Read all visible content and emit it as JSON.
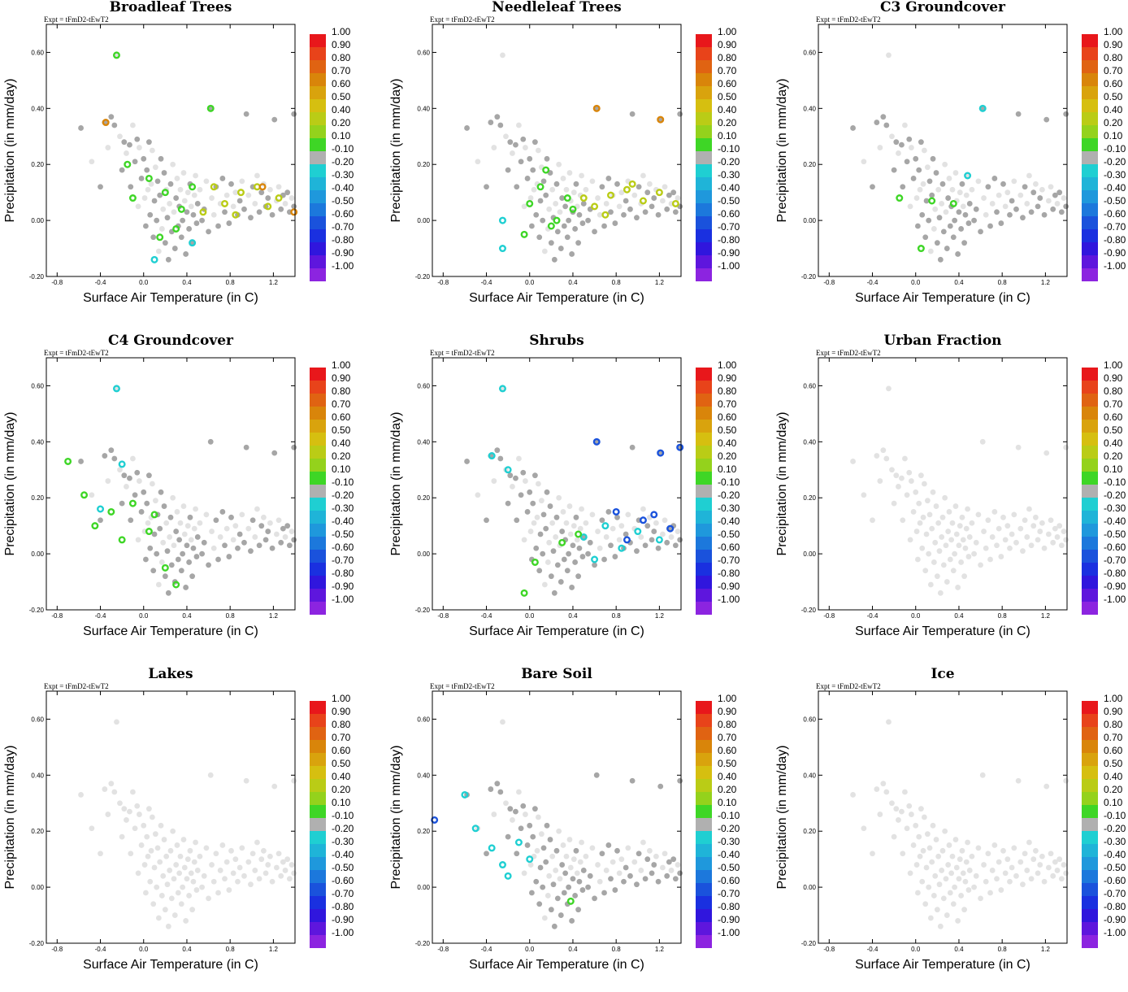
{
  "chart_data": {
    "type": "scatter",
    "layout": "3x3 small multiples",
    "expt_label": "Expt = tFmD2-tEwT2",
    "xlabel": "Surface Air Temperature (in C)",
    "ylabel": "Precipitation (in mm/day)",
    "xlim": [
      -0.9,
      1.4
    ],
    "ylim": [
      -0.2,
      0.7
    ],
    "xticks": [
      -0.8,
      -0.4,
      0.0,
      0.4,
      0.8,
      1.2
    ],
    "xtick_labels": [
      "-0.8",
      "-0.4",
      "0.0",
      "0.4",
      "0.8",
      "1.2"
    ],
    "yticks": [
      -0.2,
      0.0,
      0.2,
      0.4,
      0.6
    ],
    "ytick_labels": [
      "-0.20",
      "0.00",
      "0.20",
      "0.40",
      "0.60"
    ],
    "colorbar": {
      "labels": [
        "1.00",
        "0.90",
        "0.80",
        "0.70",
        "0.60",
        "0.50",
        "0.40",
        "0.20",
        "0.10",
        "-0.10",
        "-0.20",
        "-0.30",
        "-0.40",
        "-0.50",
        "-0.60",
        "-0.70",
        "-0.80",
        "-0.90",
        "-1.00"
      ],
      "colors": [
        "#e8171b",
        "#e8431a",
        "#e06312",
        "#d9850a",
        "#d9a30d",
        "#d6bf10",
        "#bacc16",
        "#94d21c",
        "#3ed626",
        "#b0b0b0",
        "#1fcfd2",
        "#1fb4d8",
        "#1f98dc",
        "#1c78dc",
        "#1a52dc",
        "#1a30e0",
        "#3016dd",
        "#5e16dd",
        "#8c24e0"
      ]
    },
    "point_cloud": {
      "points": [
        [
          -0.58,
          0.33
        ],
        [
          -0.48,
          0.21
        ],
        [
          -0.4,
          0.12
        ],
        [
          -0.36,
          0.35
        ],
        [
          -0.33,
          0.26
        ],
        [
          -0.3,
          0.37
        ],
        [
          -0.27,
          0.34
        ],
        [
          -0.25,
          0.59
        ],
        [
          -0.22,
          0.3
        ],
        [
          -0.2,
          0.18
        ],
        [
          -0.18,
          0.28
        ],
        [
          -0.16,
          0.24
        ],
        [
          -0.13,
          0.27
        ],
        [
          -0.12,
          0.12
        ],
        [
          -0.1,
          0.34
        ],
        [
          -0.08,
          0.21
        ],
        [
          -0.06,
          0.29
        ],
        [
          -0.05,
          0.05
        ],
        [
          -0.04,
          0.26
        ],
        [
          -0.02,
          0.15
        ],
        [
          0.0,
          0.22
        ],
        [
          0.01,
          0.08
        ],
        [
          0.02,
          -0.02
        ],
        [
          0.03,
          0.18
        ],
        [
          0.04,
          0.11
        ],
        [
          0.05,
          0.28
        ],
        [
          0.06,
          0.02
        ],
        [
          0.07,
          0.13
        ],
        [
          0.08,
          0.25
        ],
        [
          0.09,
          -0.06
        ],
        [
          0.1,
          0.07
        ],
        [
          0.11,
          0.19
        ],
        [
          0.12,
          0.0
        ],
        [
          0.13,
          0.14
        ],
        [
          0.14,
          -0.11
        ],
        [
          0.15,
          0.09
        ],
        [
          0.16,
          0.22
        ],
        [
          0.17,
          -0.03
        ],
        [
          0.18,
          0.04
        ],
        [
          0.19,
          0.17
        ],
        [
          0.2,
          -0.08
        ],
        [
          0.21,
          0.11
        ],
        [
          0.22,
          0.01
        ],
        [
          0.23,
          -0.14
        ],
        [
          0.24,
          0.06
        ],
        [
          0.25,
          0.13
        ],
        [
          0.26,
          -0.04
        ],
        [
          0.27,
          0.2
        ],
        [
          0.28,
          0.03
        ],
        [
          0.29,
          -0.1
        ],
        [
          0.3,
          0.08
        ],
        [
          0.31,
          0.15
        ],
        [
          0.32,
          -0.02
        ],
        [
          0.33,
          0.05
        ],
        [
          0.34,
          0.11
        ],
        [
          0.35,
          -0.06
        ],
        [
          0.36,
          0.0
        ],
        [
          0.37,
          0.17
        ],
        [
          0.38,
          0.07
        ],
        [
          0.39,
          -0.12
        ],
        [
          0.4,
          0.03
        ],
        [
          0.41,
          0.1
        ],
        [
          0.42,
          -0.03
        ],
        [
          0.43,
          0.13
        ],
        [
          0.44,
          0.05
        ],
        [
          0.45,
          -0.08
        ],
        [
          0.46,
          0.02
        ],
        [
          0.47,
          0.09
        ],
        [
          0.48,
          0.16
        ],
        [
          0.49,
          -0.01
        ],
        [
          0.5,
          0.06
        ],
        [
          0.52,
          0.11
        ],
        [
          0.54,
          0.0
        ],
        [
          0.56,
          0.04
        ],
        [
          0.58,
          0.14
        ],
        [
          0.6,
          -0.04
        ],
        [
          0.62,
          0.4
        ],
        [
          0.63,
          0.08
        ],
        [
          0.65,
          0.02
        ],
        [
          0.67,
          0.12
        ],
        [
          0.69,
          -0.02
        ],
        [
          0.71,
          0.06
        ],
        [
          0.73,
          0.15
        ],
        [
          0.75,
          0.03
        ],
        [
          0.77,
          0.09
        ],
        [
          0.79,
          -0.01
        ],
        [
          0.81,
          0.13
        ],
        [
          0.83,
          0.05
        ],
        [
          0.85,
          0.1
        ],
        [
          0.87,
          0.02
        ],
        [
          0.89,
          0.07
        ],
        [
          0.91,
          0.14
        ],
        [
          0.93,
          0.04
        ],
        [
          0.95,
          0.38
        ],
        [
          0.97,
          0.09
        ],
        [
          0.99,
          0.01
        ],
        [
          1.01,
          0.12
        ],
        [
          1.03,
          0.06
        ],
        [
          1.05,
          0.16
        ],
        [
          1.07,
          0.03
        ],
        [
          1.09,
          0.1
        ],
        [
          1.11,
          0.13
        ],
        [
          1.13,
          0.05
        ],
        [
          1.15,
          0.08
        ],
        [
          1.17,
          0.11
        ],
        [
          1.19,
          0.02
        ],
        [
          1.21,
          0.36
        ],
        [
          1.23,
          0.07
        ],
        [
          1.25,
          0.12
        ],
        [
          1.27,
          0.04
        ],
        [
          1.29,
          0.09
        ],
        [
          1.31,
          0.06
        ],
        [
          1.33,
          0.1
        ],
        [
          1.35,
          0.03
        ],
        [
          1.37,
          0.08
        ],
        [
          1.39,
          0.38
        ],
        [
          1.39,
          0.05
        ]
      ]
    },
    "panels": [
      {
        "title": "Broadleaf Trees",
        "signals": {
          "green": [
            [
              0.62,
              0.4
            ],
            [
              -0.25,
              0.59
            ],
            [
              0.05,
              0.15
            ],
            [
              0.2,
              0.1
            ],
            [
              0.35,
              0.04
            ],
            [
              0.15,
              -0.06
            ],
            [
              -0.1,
              0.08
            ],
            [
              0.3,
              -0.03
            ],
            [
              0.45,
              0.12
            ],
            [
              -0.15,
              0.2
            ]
          ],
          "yellowgreen": [
            [
              0.55,
              0.03
            ],
            [
              0.75,
              0.06
            ],
            [
              0.9,
              0.1
            ],
            [
              1.05,
              0.12
            ],
            [
              1.25,
              0.08
            ],
            [
              0.65,
              0.12
            ],
            [
              0.85,
              0.02
            ],
            [
              1.15,
              0.05
            ]
          ],
          "orange": [
            [
              -0.35,
              0.35
            ],
            [
              1.1,
              0.12
            ],
            [
              1.39,
              0.03
            ]
          ],
          "cyan": [
            [
              0.45,
              -0.08
            ],
            [
              0.1,
              -0.14
            ]
          ]
        }
      },
      {
        "title": "Needleleaf Trees",
        "signals": {
          "green": [
            [
              0.0,
              0.06
            ],
            [
              0.2,
              -0.02
            ],
            [
              0.35,
              0.08
            ],
            [
              0.1,
              0.12
            ],
            [
              0.25,
              0.0
            ],
            [
              -0.05,
              -0.05
            ],
            [
              0.4,
              0.04
            ],
            [
              0.15,
              0.18
            ]
          ],
          "yellowgreen": [
            [
              0.6,
              0.05
            ],
            [
              0.75,
              0.09
            ],
            [
              0.9,
              0.11
            ],
            [
              1.05,
              0.07
            ],
            [
              1.2,
              0.1
            ],
            [
              1.35,
              0.06
            ],
            [
              0.7,
              0.02
            ],
            [
              0.95,
              0.13
            ],
            [
              0.5,
              0.08
            ]
          ],
          "orange": [
            [
              0.62,
              0.4
            ],
            [
              1.21,
              0.36
            ]
          ],
          "cyan": [
            [
              -0.25,
              -0.1
            ],
            [
              -0.25,
              0.0
            ]
          ]
        }
      },
      {
        "title": "C3 Groundcover",
        "signals": {
          "green": [
            [
              0.15,
              0.07
            ],
            [
              0.05,
              -0.1
            ],
            [
              -0.15,
              0.08
            ],
            [
              0.35,
              0.06
            ]
          ],
          "cyan": [
            [
              0.62,
              0.4
            ],
            [
              0.48,
              0.16
            ]
          ]
        }
      },
      {
        "title": "C4 Groundcover",
        "signals": {
          "green": [
            [
              -0.7,
              0.33
            ],
            [
              -0.55,
              0.21
            ],
            [
              -0.45,
              0.1
            ],
            [
              -0.3,
              0.15
            ],
            [
              -0.1,
              0.18
            ],
            [
              0.05,
              0.08
            ],
            [
              0.2,
              -0.05
            ],
            [
              0.1,
              0.14
            ],
            [
              0.3,
              -0.11
            ],
            [
              -0.2,
              0.05
            ]
          ],
          "cyan": [
            [
              -0.25,
              0.59
            ],
            [
              -0.4,
              0.16
            ],
            [
              -0.2,
              0.32
            ]
          ]
        }
      },
      {
        "title": "Shrubs",
        "signals": {
          "cyan": [
            [
              -0.25,
              0.59
            ],
            [
              -0.35,
              0.35
            ],
            [
              -0.2,
              0.3
            ],
            [
              0.5,
              0.06
            ],
            [
              0.7,
              0.1
            ],
            [
              0.85,
              0.02
            ],
            [
              1.0,
              0.08
            ],
            [
              1.2,
              0.05
            ],
            [
              0.6,
              -0.02
            ]
          ],
          "blue": [
            [
              0.62,
              0.4
            ],
            [
              1.21,
              0.36
            ],
            [
              1.39,
              0.38
            ],
            [
              0.8,
              0.15
            ],
            [
              1.05,
              0.12
            ],
            [
              1.3,
              0.09
            ],
            [
              0.9,
              0.05
            ],
            [
              1.15,
              0.14
            ]
          ],
          "green": [
            [
              0.05,
              -0.03
            ],
            [
              -0.05,
              -0.14
            ],
            [
              0.3,
              0.04
            ],
            [
              0.45,
              0.07
            ]
          ]
        }
      },
      {
        "title": "Urban Fraction",
        "signals": {}
      },
      {
        "title": "Lakes",
        "signals": {}
      },
      {
        "title": "Bare Soil",
        "signals": {
          "cyan": [
            [
              -0.6,
              0.33
            ],
            [
              -0.5,
              0.21
            ],
            [
              -0.35,
              0.14
            ],
            [
              -0.25,
              0.08
            ],
            [
              -0.2,
              0.04
            ],
            [
              -0.1,
              0.16
            ],
            [
              0.0,
              0.1
            ]
          ],
          "blue": [
            [
              -0.88,
              0.24
            ]
          ],
          "green": [
            [
              0.38,
              -0.05
            ]
          ]
        }
      },
      {
        "title": "Ice",
        "signals": {}
      }
    ]
  }
}
